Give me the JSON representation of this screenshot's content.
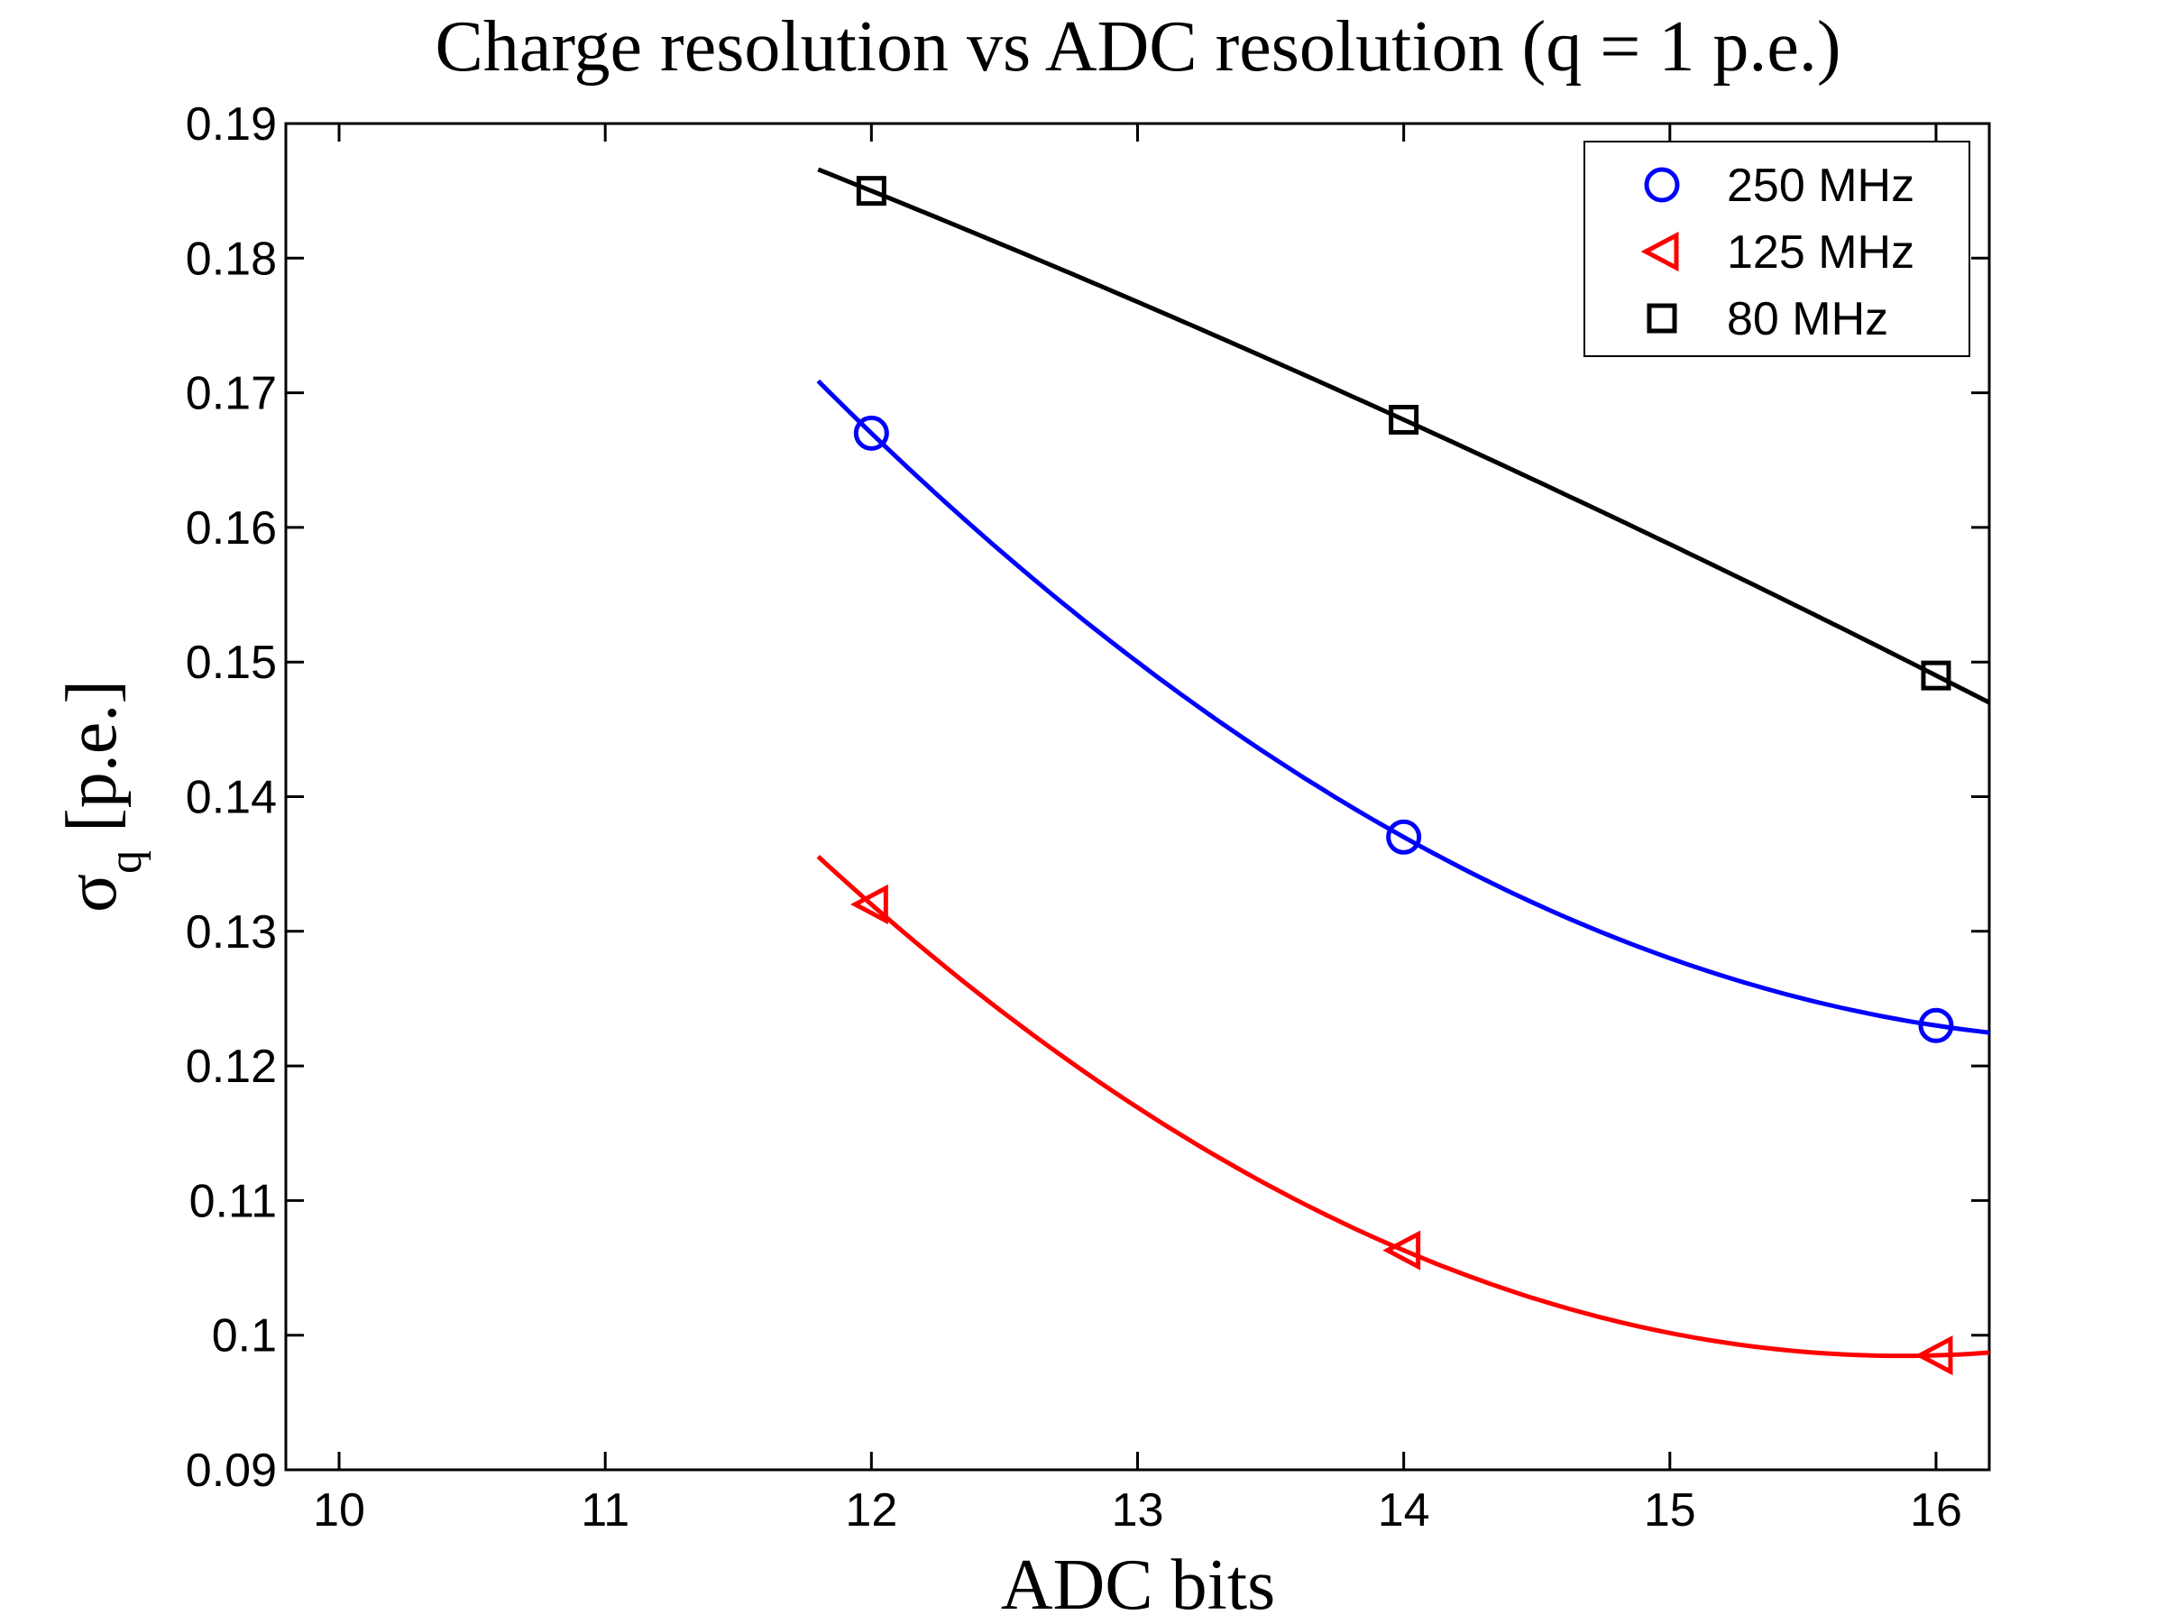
{
  "chart_data": {
    "type": "line",
    "title": "Charge resolution vs ADC resolution (q = 1 p.e.)",
    "xlabel": "ADC bits",
    "ylabel_symbol": "σ",
    "ylabel_subscript": "q",
    "ylabel_unit": " [p.e.]",
    "xlim": [
      9.8,
      16.2
    ],
    "ylim": [
      0.09,
      0.19
    ],
    "xticks": [
      10,
      11,
      12,
      13,
      14,
      15,
      16
    ],
    "yticks": [
      0.09,
      0.1,
      0.11,
      0.12,
      0.13,
      0.14,
      0.15,
      0.16,
      0.17,
      0.18,
      0.19
    ],
    "xtick_labels": [
      "10",
      "11",
      "12",
      "13",
      "14",
      "15",
      "16"
    ],
    "ytick_labels": [
      "0.09",
      "0.1",
      "0.11",
      "0.12",
      "0.13",
      "0.14",
      "0.15",
      "0.16",
      "0.17",
      "0.18",
      "0.19"
    ],
    "grid": false,
    "legend_position": "top-right",
    "series": [
      {
        "name": "250 MHz",
        "color": "#0000ff",
        "marker": "circle",
        "x": [
          12,
          14,
          16
        ],
        "values": [
          0.167,
          0.137,
          0.123
        ],
        "fit_range": [
          11.8,
          16.2
        ]
      },
      {
        "name": "125 MHz",
        "color": "#ff0000",
        "marker": "triangle-left",
        "x": [
          12,
          14,
          16
        ],
        "values": [
          0.132,
          0.1063,
          0.0985
        ],
        "fit_range": [
          11.8,
          16.2
        ]
      },
      {
        "name": "80 MHz",
        "color": "#000000",
        "marker": "square",
        "x": [
          12,
          14,
          16
        ],
        "values": [
          0.185,
          0.168,
          0.149
        ],
        "fit_range": [
          11.8,
          16.2
        ]
      }
    ]
  }
}
